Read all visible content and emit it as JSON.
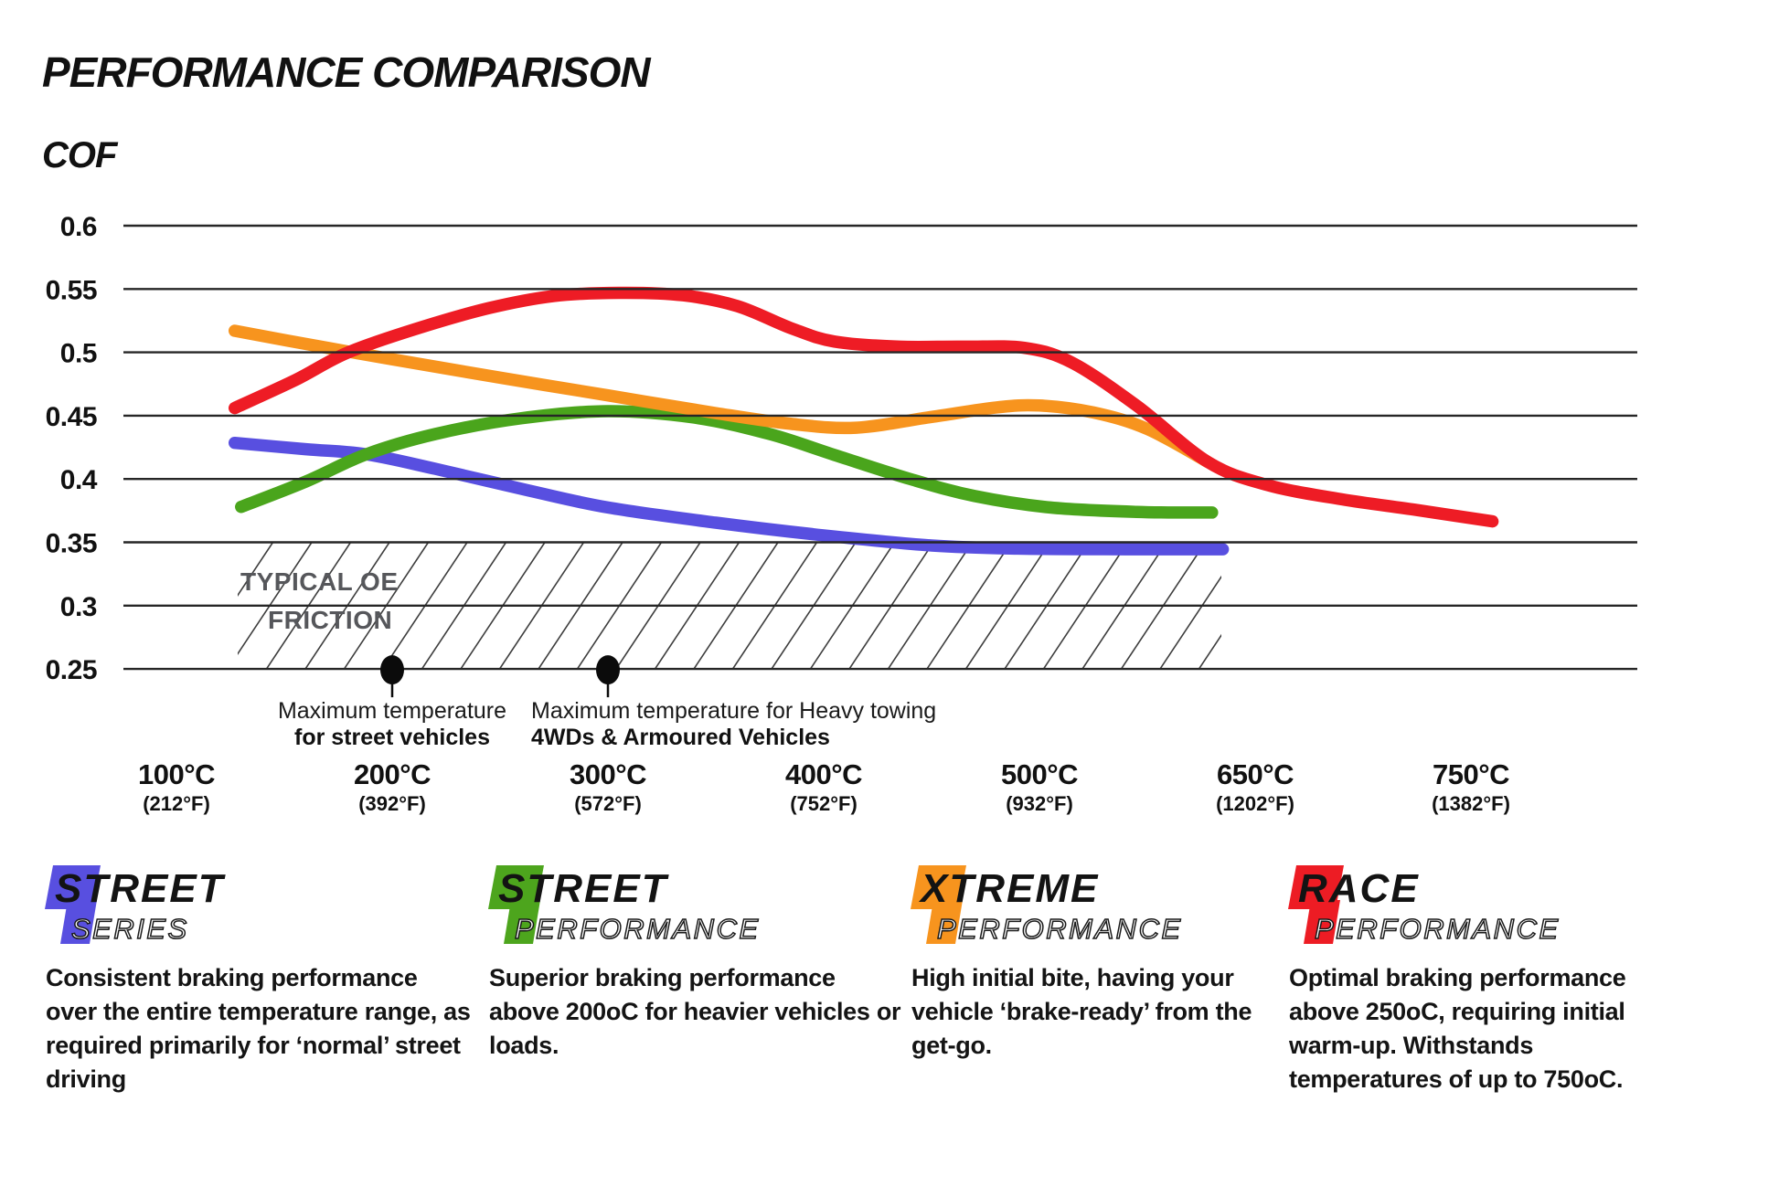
{
  "header": {
    "title": "PERFORMANCE COMPARISON"
  },
  "chart_data": {
    "type": "line",
    "title": "PERFORMANCE COMPARISON",
    "ylabel": "COF",
    "xlabel": "",
    "ylim": [
      0.25,
      0.6
    ],
    "grid": "horizontal-only",
    "legend_position": "bottom",
    "yticks": [
      0.6,
      0.55,
      0.5,
      0.45,
      0.4,
      0.35,
      0.3,
      0.25
    ],
    "xticks": [
      {
        "c": "100°C",
        "f": "(212°F)"
      },
      {
        "c": "200°C",
        "f": "(392°F)"
      },
      {
        "c": "300°C",
        "f": "(572°F)"
      },
      {
        "c": "400°C",
        "f": "(752°F)"
      },
      {
        "c": "500°C",
        "f": "(932°F)"
      },
      {
        "c": "650°C",
        "f": "(1202°F)"
      },
      {
        "c": "750°C",
        "f": "(1382°F)"
      }
    ],
    "x_encoding_note": "series point x values are tick indices: 0=100°C, 1=200°C, 2=300°C, 3=400°C, 4=500°C, 5=650°C, 6=750°C",
    "series": [
      {
        "id": "street-series",
        "name": "Street Series",
        "color": "#584fe0",
        "points": [
          [
            0.27,
            0.4285
          ],
          [
            0.6,
            0.4235
          ],
          [
            0.88,
            0.4195
          ],
          [
            1.2,
            0.408
          ],
          [
            1.63,
            0.391
          ],
          [
            2.0,
            0.3775
          ],
          [
            2.5,
            0.3655
          ],
          [
            3.0,
            0.3555
          ],
          [
            3.5,
            0.3475
          ],
          [
            3.9,
            0.345
          ],
          [
            4.4,
            0.3445
          ],
          [
            4.85,
            0.3445
          ]
        ]
      },
      {
        "id": "street-performance",
        "name": "Street Performance",
        "color": "#4aa51c",
        "points": [
          [
            0.3,
            0.378
          ],
          [
            0.6,
            0.398
          ],
          [
            0.88,
            0.4195
          ],
          [
            1.2,
            0.4355
          ],
          [
            1.6,
            0.448
          ],
          [
            2.0,
            0.4535
          ],
          [
            2.4,
            0.4485
          ],
          [
            2.75,
            0.4355
          ],
          [
            3.05,
            0.419
          ],
          [
            3.4,
            0.4
          ],
          [
            3.7,
            0.3865
          ],
          [
            4.05,
            0.3775
          ],
          [
            4.45,
            0.374
          ],
          [
            4.8,
            0.3735
          ]
        ]
      },
      {
        "id": "xtreme-performance",
        "name": "Xtreme Performance",
        "color": "#f7941e",
        "points": [
          [
            0.27,
            0.517
          ],
          [
            0.7,
            0.5035
          ],
          [
            1.0,
            0.4945
          ],
          [
            1.5,
            0.48
          ],
          [
            2.0,
            0.466
          ],
          [
            2.5,
            0.452
          ],
          [
            2.85,
            0.4435
          ],
          [
            3.15,
            0.4405
          ],
          [
            3.5,
            0.449
          ],
          [
            3.8,
            0.4565
          ],
          [
            4.0,
            0.458
          ],
          [
            4.25,
            0.4525
          ],
          [
            4.5,
            0.4395
          ],
          [
            4.78,
            0.4135
          ]
        ]
      },
      {
        "id": "race-performance",
        "name": "Race Performance",
        "color": "#ee1c25",
        "points": [
          [
            0.27,
            0.456
          ],
          [
            0.55,
            0.478
          ],
          [
            0.79,
            0.4995
          ],
          [
            1.1,
            0.518
          ],
          [
            1.45,
            0.535
          ],
          [
            1.75,
            0.5445
          ],
          [
            2.05,
            0.547
          ],
          [
            2.35,
            0.545
          ],
          [
            2.6,
            0.5365
          ],
          [
            2.85,
            0.519
          ],
          [
            3.05,
            0.5085
          ],
          [
            3.35,
            0.5045
          ],
          [
            3.65,
            0.5045
          ],
          [
            3.93,
            0.5035
          ],
          [
            4.15,
            0.492
          ],
          [
            4.45,
            0.458
          ],
          [
            4.78,
            0.4135
          ],
          [
            5.05,
            0.3955
          ],
          [
            5.4,
            0.384
          ],
          [
            5.75,
            0.3755
          ],
          [
            6.1,
            0.3665
          ]
        ]
      }
    ],
    "oe_band": {
      "label_line1": "TYPICAL OE",
      "label_line2": "FRICTION",
      "band": [
        0.25,
        0.35
      ]
    },
    "annotations": [
      {
        "x_tick": 1,
        "align": "center",
        "line1": "Maximum temperature",
        "line2": "for street vehicles"
      },
      {
        "x_tick": 2,
        "align": "left",
        "line1": "Maximum temperature for Heavy towing",
        "line2": "4WDs & Armoured Vehicles"
      }
    ]
  },
  "legend": {
    "items": [
      {
        "id": "street-series",
        "word1": "STREET",
        "word2": "SERIES",
        "color": "#584fe0",
        "description": "Consistent braking performance over the entire temperature range, as required primarily for ‘normal’ street driving"
      },
      {
        "id": "street-performance",
        "word1": "STREET",
        "word2": "PERFORMANCE",
        "color": "#4da51d",
        "description": "Superior braking performance above 200oC for heavier vehicles or loads."
      },
      {
        "id": "xtreme-performance",
        "word1": "XTREME",
        "word2": "PERFORMANCE",
        "color": "#f7941e",
        "description": "High initial bite, having your vehicle ‘brake-ready’ from the get-go."
      },
      {
        "id": "race-performance",
        "word1": "RACE",
        "word2": "PERFORMANCE",
        "color": "#ed1c24",
        "description": "Optimal braking performance above 250oC, requiring initial warm-up. Withstands temperatures of up to 750oC."
      }
    ]
  }
}
